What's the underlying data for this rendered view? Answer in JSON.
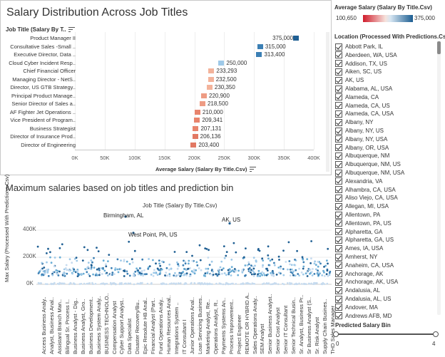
{
  "top_chart": {
    "title": "Salary Distribution Across Job Titles",
    "row_header": "Job Title (Salary By T..",
    "x_title": "Average Salary (Salary By Title.Csv)",
    "ticks": [
      "0K",
      "50K",
      "100K",
      "150K",
      "200K",
      "250K",
      "300K",
      "350K",
      "400K"
    ]
  },
  "chart_data": [
    {
      "type": "bar",
      "title": "Salary Distribution Across Job Titles",
      "xlabel": "Average Salary (Salary By Title.Csv)",
      "ylabel": "Job Title (Salary By T..",
      "xlim": [
        0,
        400000
      ],
      "categories": [
        "Product Manager II",
        "Consultative Sales -Small ..",
        "Executive Director, Data ..",
        "Cloud Cyber Incident Resp..",
        "Chief Financial Officer",
        "Managing Director - NetS..",
        "Director, US GTB Strategy..",
        "Principal Product Manage..",
        "Senior Director of Sales a..",
        "AF Fighter Jet Operations ..",
        "Vice President of Program..",
        "Business Strategist",
        "Director of Insurance Prod..",
        "Director of Engineering"
      ],
      "values": [
        375000,
        315000,
        313400,
        250000,
        233293,
        232500,
        230350,
        220900,
        218500,
        210000,
        209341,
        207131,
        206136,
        203400
      ],
      "value_labels": [
        "375,000",
        "315,000",
        "313,400",
        "250,000",
        "233,293",
        "232,500",
        "230,350",
        "220,900",
        "218,500",
        "210,000",
        "209,341",
        "207,131",
        "206,136",
        "203,400"
      ],
      "colors": [
        "#1f5f93",
        "#3b7fb4",
        "#3b7fb4",
        "#9ec9e8",
        "#f3b39b",
        "#f3b39b",
        "#f3b39b",
        "#ee9c84",
        "#ee9c84",
        "#e8846d",
        "#e8846d",
        "#e8846d",
        "#e27863",
        "#e27863"
      ]
    },
    {
      "type": "scatter",
      "title": "Maximum salaries based on job titles and prediction bin",
      "header": "Job Title (Salary By Title.Csv)",
      "ylabel": "Max Salary (Processed With Predictions.Csv)",
      "ylim": [
        0,
        500000
      ],
      "yticks": [
        "400K",
        "200K",
        "0K"
      ],
      "annotations": [
        {
          "text": "Birmingham, AL",
          "value": 500000
        },
        {
          "text": "AK, US",
          "value": 450000
        },
        {
          "text": "West Point, PA, US",
          "value": 380000
        }
      ]
    }
  ],
  "scatter": {
    "title": "Maximum salaries based on job titles and prediction bin",
    "header": "Job Title (Salary By Title.Csv)",
    "ylabel": "Max Salary (Processed With Predictions.Csv)",
    "yticks": [
      "400K",
      "200K",
      "0K"
    ],
    "annotations": [
      "Birmingham, AL",
      "AK, US",
      "West Point, PA, US"
    ],
    "x_labels": [
      "Access Business Analy..",
      "Analyst, Business Anal..",
      "Assistant Branch Man..",
      "Bilingual Sr. Process I..",
      "Business Analyst - Dig..",
      "Business Analyst, Gro..",
      "Business Development..",
      "Business System Analy..",
      "BUSINESS TECHNOLO..",
      "Compensation Analyst",
      "Cyber Support Analyst..",
      "Data Specialist",
      "Disaster Recovery/Bu..",
      "Epic Resolute HB Anal..",
      "Financial Analyst (Part..",
      "Fund Operations Analy..",
      "Human Resources Anal..",
      "Integrations System ..",
      "IT Consultant I",
      "Junior Operations Anal..",
      "Loan Servicing Busines..",
      "Marketing Analyst, Re..",
      "Operations Analyst, R..",
      "Payments Systems An..",
      "Process Improvement..",
      "Project Engineer",
      "REMOTE OR HYBRID A..",
      "Sales Operations Analy..",
      "SEM Analyst",
      "Senior Business Analyst..",
      "Senior Cost Analyst",
      "Senior IT Consultant",
      "Senior Technical Busin..",
      "Sr. Analyst, Business Pr..",
      "Sr Business Analyst (S..",
      "Sr. Risk Analyst",
      "Supply Chain Busines..",
      "THD Sales Manager"
    ]
  },
  "legend": {
    "title": "Average Salary (Salary By Title.Csv)",
    "min": "100,650",
    "max": "375,000"
  },
  "filter": {
    "title": "Location (Processed With Predictions.Cs..",
    "items": [
      "Abbott Park, IL",
      "Aberdeen, WA, USA",
      "Addison, TX, US",
      "Aiken, SC, US",
      "AK, US",
      "Alabama, AL, USA",
      "Alameda, CA",
      "Alameda, CA, US",
      "Alameda, CA, USA",
      "Albany, NY",
      "Albany, NY, US",
      "Albany, NY, USA",
      "Albany, OR, USA",
      "Albuquerque, NM",
      "Albuquerque, NM, US",
      "Albuquerque, NM, USA",
      "Alexandria, VA",
      "Alhambra, CA, USA",
      "Aliso Viejo, CA, USA",
      "Allegan, MI, USA",
      "Allentown, PA",
      "Allentown, PA, US",
      "Alpharetta, GA",
      "Alpharetta, GA, US",
      "Ames, IA, USA",
      "Amherst, NY",
      "Anaheim, CA, USA",
      "Anchorage, AK",
      "Anchorage, AK, USA",
      "Andalusia, AL",
      "Andalusia, AL, US",
      "Andover, MA",
      "Andrews AFB, MD"
    ]
  },
  "bin_filter": {
    "title": "Predicted Salary Bin",
    "min": "0",
    "max": "4"
  }
}
